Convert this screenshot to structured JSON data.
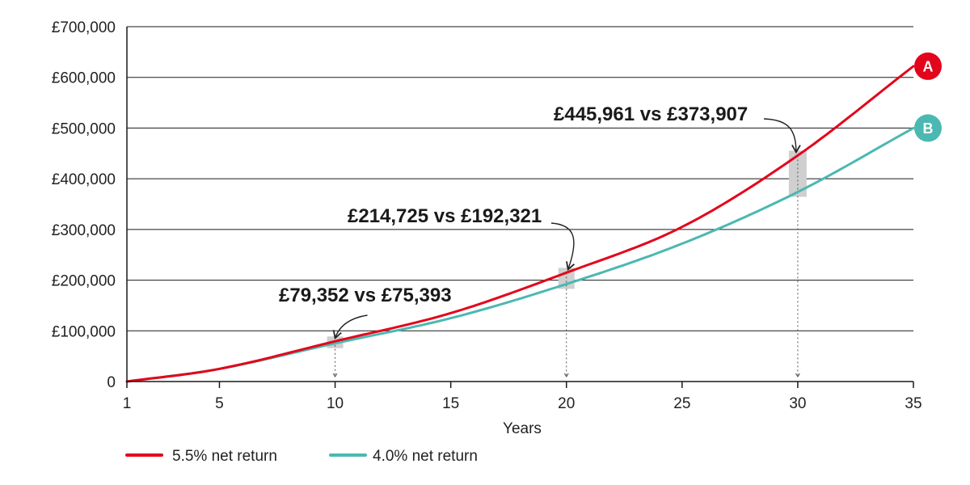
{
  "chart_data": {
    "type": "line",
    "xlabel": "Years",
    "ylabel": "",
    "xlim": [
      1,
      35
    ],
    "ylim": [
      0,
      700000
    ],
    "x_ticks": [
      1,
      5,
      10,
      15,
      20,
      25,
      30,
      35
    ],
    "y_ticks": [
      0,
      100000,
      200000,
      300000,
      400000,
      500000,
      600000,
      700000
    ],
    "y_tick_labels": [
      "0",
      "£100,000",
      "£200,000",
      "£300,000",
      "£400,000",
      "£500,000",
      "£600,000",
      "£700,000"
    ],
    "grid": "horizontal",
    "legend_position": "bottom-left",
    "series": [
      {
        "name": "5.5% net return",
        "color": "#e3051b",
        "end_marker": "A",
        "x": [
          1,
          5,
          10,
          15,
          20,
          25,
          30,
          35
        ],
        "y": [
          0,
          25000,
          79352,
          135000,
          214725,
          305000,
          445961,
          622000
        ]
      },
      {
        "name": "4.0% net return",
        "color": "#4bb8b2",
        "end_marker": "B",
        "x": [
          1,
          5,
          10,
          15,
          20,
          25,
          30,
          35
        ],
        "y": [
          0,
          25000,
          75393,
          125000,
          192321,
          272000,
          373907,
          500000
        ]
      }
    ],
    "annotations": [
      {
        "x": 10,
        "text": "£79,352 vs £75,393"
      },
      {
        "x": 20,
        "text": "£214,725 vs £192,321"
      },
      {
        "x": 30,
        "text": "£445,961 vs £373,907"
      }
    ]
  }
}
